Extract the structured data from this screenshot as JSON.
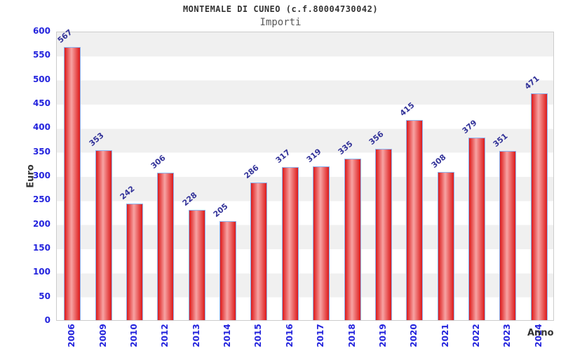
{
  "chart_data": {
    "type": "bar",
    "title": "MONTEMALE DI CUNEO (c.f.80004730042)",
    "subtitle": "Importi",
    "xlabel": "Anno",
    "ylabel": "Euro",
    "categories": [
      "2006",
      "2009",
      "2010",
      "2012",
      "2013",
      "2014",
      "2015",
      "2016",
      "2017",
      "2018",
      "2019",
      "2020",
      "2021",
      "2022",
      "2023",
      "2024"
    ],
    "values": [
      567,
      353,
      242,
      306,
      228,
      205,
      286,
      317,
      319,
      335,
      356,
      415,
      308,
      379,
      351,
      471
    ],
    "ylim": [
      0,
      600
    ],
    "ytick_step": 50,
    "grid": "horizontal-bands-alternating",
    "legend": "none"
  },
  "colors": {
    "bar_edge_red": "#dd1a1a",
    "bar_highlight_pink": "#f7a3a3",
    "bar_border_blue": "#8cb2ee",
    "axis_tick_blue": "#2424dd",
    "value_label_navy": "#333399",
    "band_gray": "#f0f0f0",
    "band_white": "#ffffff",
    "plot_border_gray": "#cccccc",
    "title_color": "#333333",
    "subtitle_color": "#595959"
  }
}
